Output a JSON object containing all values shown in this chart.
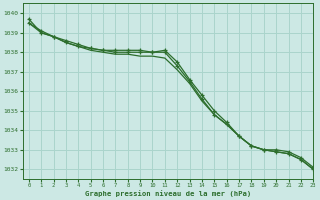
{
  "title": "Graphe pression niveau de la mer (hPa)",
  "bg_color": "#cce8e4",
  "grid_color": "#aad4cc",
  "line_color": "#2d6e2d",
  "xlim": [
    -0.5,
    23
  ],
  "ylim": [
    1031.5,
    1040.5
  ],
  "yticks": [
    1032,
    1033,
    1034,
    1035,
    1036,
    1037,
    1038,
    1039,
    1040
  ],
  "xticks": [
    0,
    1,
    2,
    3,
    4,
    5,
    6,
    7,
    8,
    9,
    10,
    11,
    12,
    13,
    14,
    15,
    16,
    17,
    18,
    19,
    20,
    21,
    22,
    23
  ],
  "series_steady_x": [
    0,
    1,
    2,
    3,
    4,
    5,
    6,
    7,
    8,
    9,
    10,
    11,
    12,
    13,
    14,
    15,
    16,
    17,
    18,
    19,
    20,
    21,
    22,
    23
  ],
  "series_steady_y": [
    1039.5,
    1039.1,
    1038.8,
    1038.5,
    1038.3,
    1038.2,
    1038.1,
    1038.0,
    1038.0,
    1038.0,
    1038.0,
    1038.0,
    1037.3,
    1036.5,
    1035.6,
    1034.8,
    1034.3,
    1033.7,
    1033.2,
    1033.0,
    1032.9,
    1032.8,
    1032.5,
    1032.0
  ],
  "series_steady2_x": [
    0,
    1,
    2,
    3,
    4,
    5,
    6,
    7,
    8,
    9,
    10,
    11,
    12,
    13,
    14,
    15,
    16,
    17,
    18,
    19,
    20,
    21,
    22,
    23
  ],
  "series_steady2_y": [
    1039.5,
    1039.0,
    1038.8,
    1038.5,
    1038.3,
    1038.1,
    1038.0,
    1037.9,
    1037.9,
    1037.8,
    1037.8,
    1037.7,
    1037.1,
    1036.4,
    1035.5,
    1034.8,
    1034.3,
    1033.7,
    1033.2,
    1033.0,
    1032.9,
    1032.8,
    1032.5,
    1032.0
  ],
  "series_peak_x": [
    0,
    1,
    2,
    3,
    4,
    5,
    6,
    7,
    8,
    9,
    10,
    11,
    12,
    13,
    14,
    15,
    16,
    17,
    18,
    19,
    20,
    21,
    22,
    23
  ],
  "series_peak_y": [
    1039.7,
    1039.0,
    1038.8,
    1038.6,
    1038.4,
    1038.2,
    1038.1,
    1038.1,
    1038.1,
    1038.1,
    1038.0,
    1038.1,
    1037.5,
    1036.6,
    1035.8,
    1035.0,
    1034.4,
    1033.7,
    1033.2,
    1033.0,
    1033.0,
    1032.9,
    1032.6,
    1032.1
  ]
}
